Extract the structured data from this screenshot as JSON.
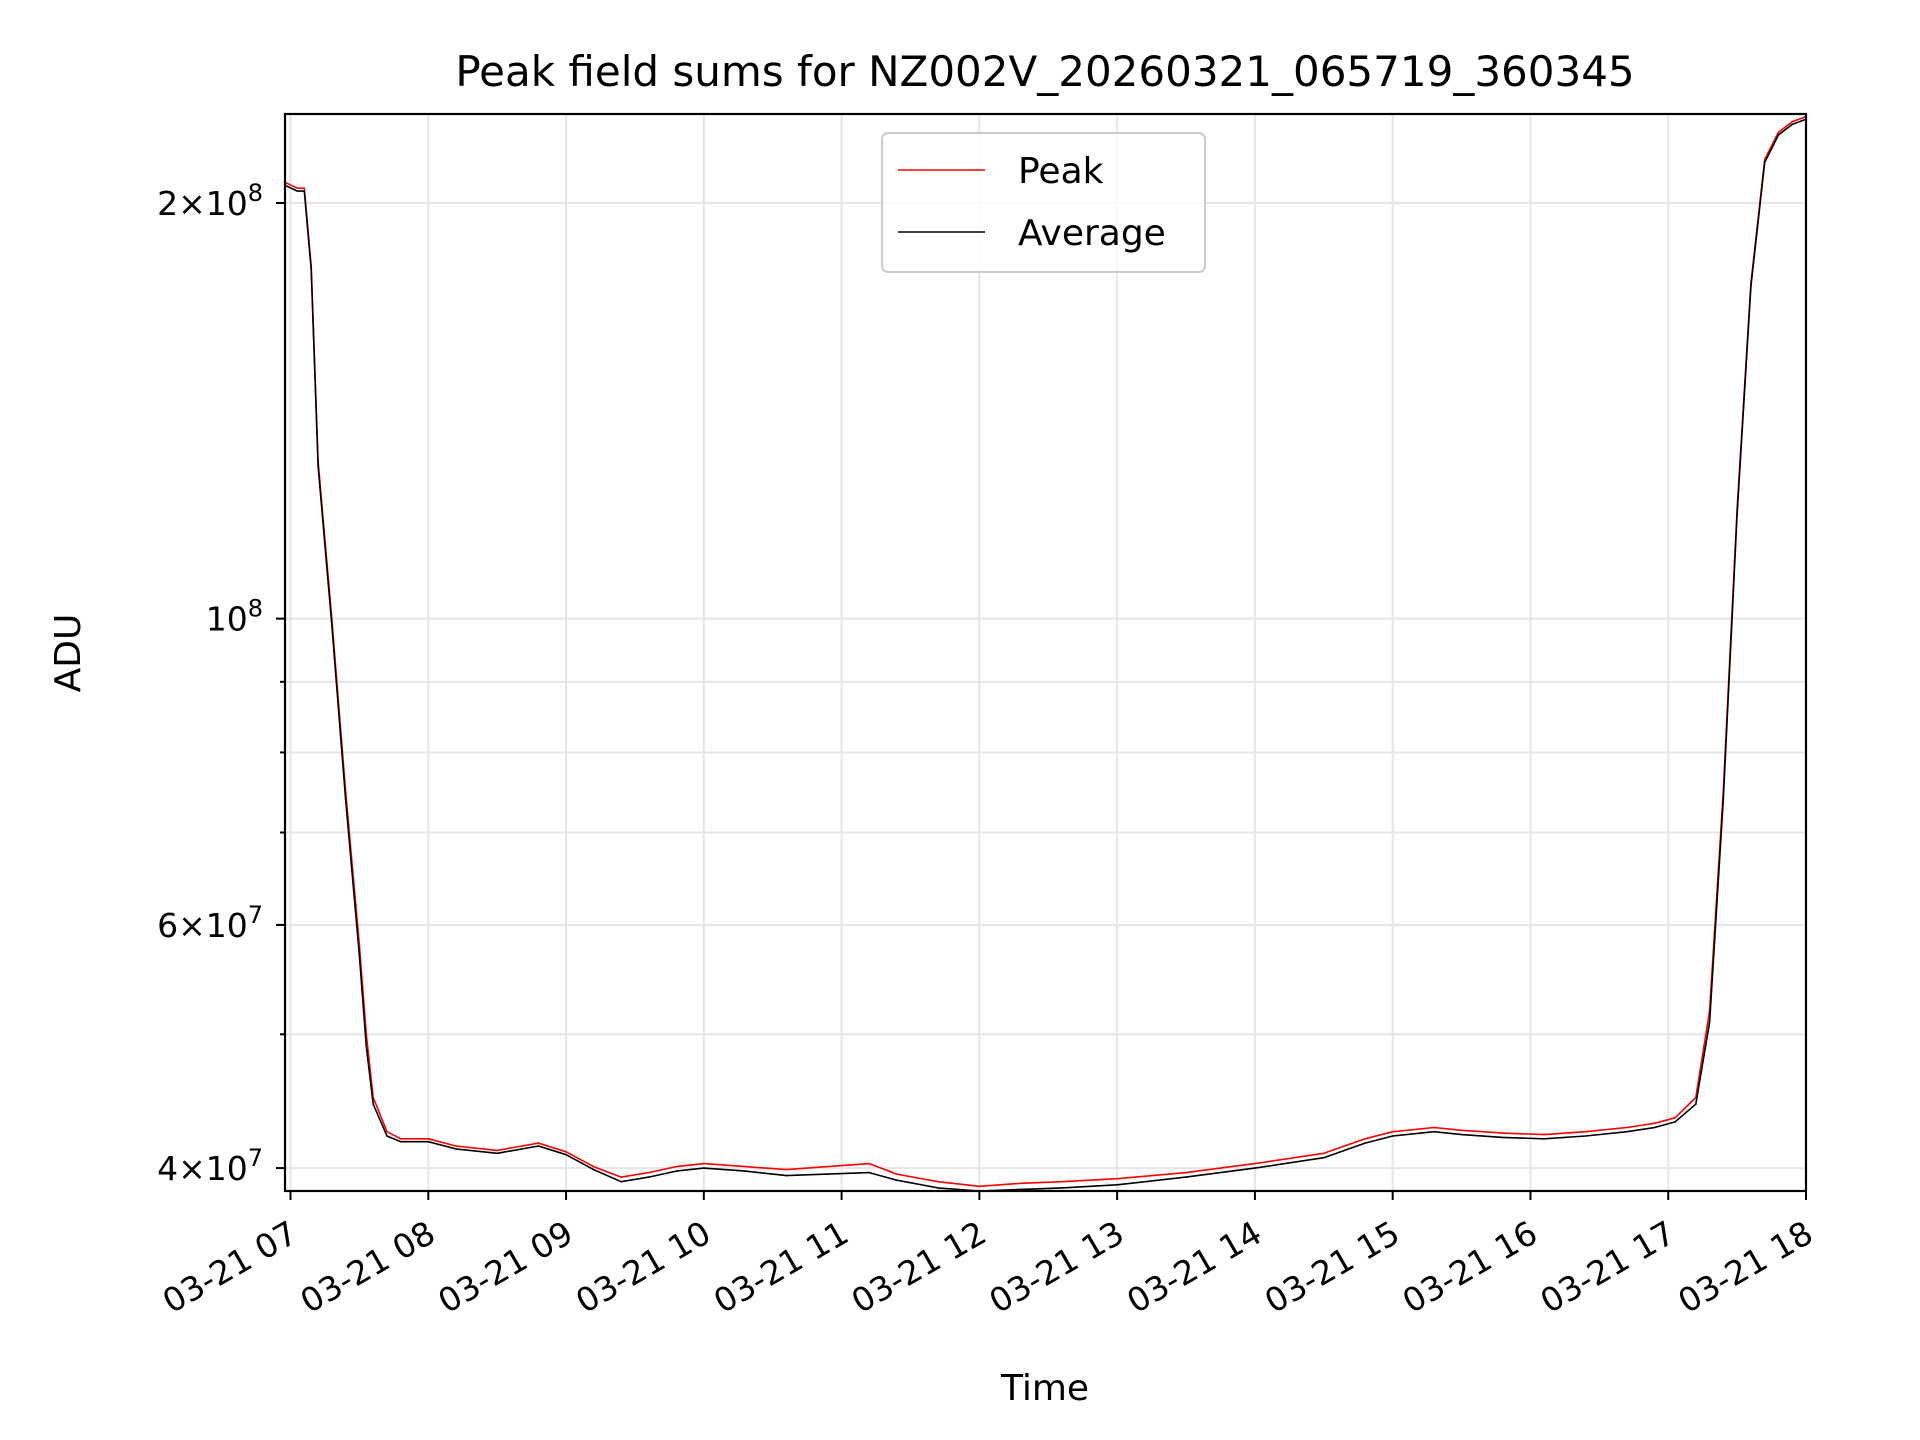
{
  "chart_data": {
    "type": "line",
    "title": "Peak field sums for NZ002V_20260321_065719_360345",
    "xlabel": "Time",
    "ylabel": "ADU",
    "yscale": "log",
    "ylim": [
      38500000,
      232000000
    ],
    "x_unit": "hours on 03-21",
    "xlim": [
      6.96,
      18.0
    ],
    "x_ticks": [
      {
        "value": 7,
        "label": "03-21 07"
      },
      {
        "value": 8,
        "label": "03-21 08"
      },
      {
        "value": 9,
        "label": "03-21 09"
      },
      {
        "value": 10,
        "label": "03-21 10"
      },
      {
        "value": 11,
        "label": "03-21 11"
      },
      {
        "value": 12,
        "label": "03-21 12"
      },
      {
        "value": 13,
        "label": "03-21 13"
      },
      {
        "value": 14,
        "label": "03-21 14"
      },
      {
        "value": 15,
        "label": "03-21 15"
      },
      {
        "value": 16,
        "label": "03-21 16"
      },
      {
        "value": 17,
        "label": "03-21 17"
      },
      {
        "value": 18,
        "label": "03-21 18"
      }
    ],
    "y_major_ticks": [
      {
        "value": 40000000,
        "mantissa": "4",
        "exponent": "7"
      },
      {
        "value": 60000000,
        "mantissa": "6",
        "exponent": "7"
      },
      {
        "value": 100000000,
        "mantissa": "",
        "exponent": "8"
      },
      {
        "value": 200000000,
        "mantissa": "2",
        "exponent": "8"
      }
    ],
    "y_minor_ticks": [
      50000000,
      70000000,
      80000000,
      90000000
    ],
    "grid": true,
    "legend_position": "top-center",
    "series": [
      {
        "name": "Peak",
        "color": "#ff0000",
        "x": [
          6.96,
          7.05,
          7.1,
          7.15,
          7.2,
          7.3,
          7.4,
          7.5,
          7.55,
          7.6,
          7.7,
          7.8,
          8.0,
          8.2,
          8.5,
          8.8,
          9.0,
          9.2,
          9.4,
          9.6,
          9.8,
          10.0,
          10.3,
          10.6,
          10.9,
          11.2,
          11.4,
          11.7,
          12.0,
          12.3,
          12.6,
          13.0,
          13.5,
          14.0,
          14.5,
          14.8,
          15.0,
          15.3,
          15.5,
          15.8,
          16.1,
          16.4,
          16.7,
          16.9,
          17.05,
          17.2,
          17.3,
          17.4,
          17.5,
          17.6,
          17.7,
          17.8,
          17.9,
          18.0
        ],
        "values": [
          207000000,
          205000000,
          205000000,
          180000000,
          130000000,
          100000000,
          75000000,
          58000000,
          50000000,
          45000000,
          42500000,
          42000000,
          42000000,
          41500000,
          41200000,
          41700000,
          41100000,
          40100000,
          39400000,
          39700000,
          40100000,
          40300000,
          40100000,
          39900000,
          40100000,
          40300000,
          39600000,
          39100000,
          38800000,
          39000000,
          39100000,
          39300000,
          39700000,
          40300000,
          41000000,
          42000000,
          42500000,
          42800000,
          42600000,
          42400000,
          42300000,
          42500000,
          42800000,
          43100000,
          43500000,
          45000000,
          52000000,
          75000000,
          120000000,
          175000000,
          215000000,
          225000000,
          229000000,
          231000000
        ]
      },
      {
        "name": "Average",
        "color": "#000000",
        "x": [
          6.96,
          7.05,
          7.1,
          7.15,
          7.2,
          7.3,
          7.4,
          7.5,
          7.55,
          7.6,
          7.7,
          7.8,
          8.0,
          8.2,
          8.5,
          8.8,
          9.0,
          9.2,
          9.4,
          9.6,
          9.8,
          10.0,
          10.3,
          10.6,
          10.9,
          11.2,
          11.4,
          11.7,
          12.0,
          12.3,
          12.6,
          13.0,
          13.5,
          14.0,
          14.5,
          14.8,
          15.0,
          15.3,
          15.5,
          15.8,
          16.1,
          16.4,
          16.7,
          16.9,
          17.05,
          17.2,
          17.3,
          17.4,
          17.5,
          17.6,
          17.7,
          17.8,
          17.9,
          18.0
        ],
        "values": [
          206000000,
          204000000,
          204000000,
          179000000,
          129000000,
          99000000,
          74000000,
          57000000,
          49000000,
          44500000,
          42200000,
          41800000,
          41800000,
          41300000,
          41000000,
          41500000,
          40900000,
          39900000,
          39100000,
          39400000,
          39800000,
          40000000,
          39800000,
          39500000,
          39600000,
          39700000,
          39200000,
          38700000,
          38500000,
          38600000,
          38700000,
          38900000,
          39400000,
          40000000,
          40700000,
          41700000,
          42200000,
          42500000,
          42300000,
          42100000,
          42000000,
          42200000,
          42500000,
          42800000,
          43200000,
          44500000,
          51000000,
          74000000,
          119000000,
          174000000,
          214000000,
          224000000,
          228000000,
          230000000
        ]
      }
    ]
  }
}
